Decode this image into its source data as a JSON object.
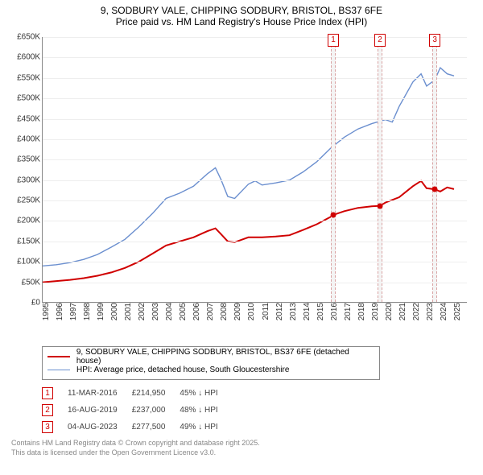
{
  "title_line1": "9, SODBURY VALE, CHIPPING SODBURY, BRISTOL, BS37 6FE",
  "title_line2": "Price paid vs. HM Land Registry's House Price Index (HPI)",
  "chart": {
    "type": "line",
    "background_color": "#ffffff",
    "grid_color": "#eeeeee",
    "axis_color": "#888888",
    "font_size_axis": 10,
    "x": {
      "min": 1995,
      "max": 2026,
      "ticks": [
        1995,
        1996,
        1997,
        1998,
        1999,
        2000,
        2001,
        2002,
        2003,
        2004,
        2005,
        2006,
        2007,
        2008,
        2009,
        2010,
        2011,
        2012,
        2013,
        2014,
        2015,
        2016,
        2017,
        2018,
        2019,
        2020,
        2021,
        2022,
        2023,
        2024,
        2025
      ]
    },
    "y": {
      "min": 0,
      "max": 650000,
      "tick_step": 50000,
      "tick_labels": [
        "£0",
        "£50K",
        "£100K",
        "£150K",
        "£200K",
        "£250K",
        "£300K",
        "£350K",
        "£400K",
        "£450K",
        "£500K",
        "£550K",
        "£600K",
        "£650K"
      ]
    },
    "series": [
      {
        "name": "price_paid",
        "color": "#d00000",
        "line_width": 2,
        "data": [
          [
            1995,
            50000
          ],
          [
            1996,
            53000
          ],
          [
            1997,
            56000
          ],
          [
            1998,
            60000
          ],
          [
            1999,
            66000
          ],
          [
            2000,
            74000
          ],
          [
            2001,
            85000
          ],
          [
            2002,
            100000
          ],
          [
            2003,
            120000
          ],
          [
            2004,
            140000
          ],
          [
            2005,
            150000
          ],
          [
            2006,
            160000
          ],
          [
            2007,
            175000
          ],
          [
            2007.6,
            182000
          ],
          [
            2008,
            168000
          ],
          [
            2008.5,
            150000
          ],
          [
            2009,
            148000
          ],
          [
            2010,
            160000
          ],
          [
            2011,
            160000
          ],
          [
            2012,
            162000
          ],
          [
            2013,
            165000
          ],
          [
            2014,
            178000
          ],
          [
            2015,
            192000
          ],
          [
            2016,
            210000
          ],
          [
            2016.2,
            214950
          ],
          [
            2017,
            224000
          ],
          [
            2018,
            232000
          ],
          [
            2019,
            236000
          ],
          [
            2019.6,
            237000
          ],
          [
            2020,
            245000
          ],
          [
            2021,
            258000
          ],
          [
            2022,
            285000
          ],
          [
            2022.6,
            298000
          ],
          [
            2023,
            280000
          ],
          [
            2023.6,
            277500
          ],
          [
            2024,
            272000
          ],
          [
            2024.5,
            282000
          ],
          [
            2025,
            278000
          ]
        ]
      },
      {
        "name": "hpi",
        "color": "#6b8fcf",
        "line_width": 1.4,
        "data": [
          [
            1995,
            90000
          ],
          [
            1996,
            93000
          ],
          [
            1997,
            98000
          ],
          [
            1998,
            106000
          ],
          [
            1999,
            118000
          ],
          [
            2000,
            136000
          ],
          [
            2001,
            155000
          ],
          [
            2002,
            185000
          ],
          [
            2003,
            218000
          ],
          [
            2004,
            255000
          ],
          [
            2005,
            268000
          ],
          [
            2006,
            285000
          ],
          [
            2007,
            315000
          ],
          [
            2007.6,
            330000
          ],
          [
            2008,
            302000
          ],
          [
            2008.5,
            260000
          ],
          [
            2009,
            255000
          ],
          [
            2010,
            290000
          ],
          [
            2010.5,
            298000
          ],
          [
            2011,
            288000
          ],
          [
            2012,
            293000
          ],
          [
            2013,
            300000
          ],
          [
            2014,
            320000
          ],
          [
            2015,
            345000
          ],
          [
            2016,
            378000
          ],
          [
            2017,
            405000
          ],
          [
            2018,
            425000
          ],
          [
            2019,
            438000
          ],
          [
            2020,
            448000
          ],
          [
            2020.5,
            442000
          ],
          [
            2021,
            480000
          ],
          [
            2022,
            540000
          ],
          [
            2022.6,
            560000
          ],
          [
            2023,
            530000
          ],
          [
            2023.6,
            545000
          ],
          [
            2024,
            575000
          ],
          [
            2024.5,
            560000
          ],
          [
            2025,
            555000
          ]
        ]
      }
    ],
    "markers": [
      {
        "num": "1",
        "x": 2016.2,
        "y": 214950,
        "dot_color": "#d00000",
        "band_color": "#f4f4f4",
        "border_color": "#d9a3a3"
      },
      {
        "num": "2",
        "x": 2019.6,
        "y": 237000,
        "dot_color": "#d00000",
        "band_color": "#f4f4f4",
        "border_color": "#d9a3a3"
      },
      {
        "num": "3",
        "x": 2023.6,
        "y": 277500,
        "dot_color": "#d00000",
        "band_color": "#f4f4f4",
        "border_color": "#d9a3a3"
      }
    ]
  },
  "legend": {
    "items": [
      {
        "label": "9, SODBURY VALE, CHIPPING SODBURY, BRISTOL, BS37 6FE (detached house)",
        "color": "#d00000",
        "width": 2
      },
      {
        "label": "HPI: Average price, detached house, South Gloucestershire",
        "color": "#6b8fcf",
        "width": 1.4
      }
    ]
  },
  "flags": {
    "rows": [
      {
        "num": "1",
        "date": "11-MAR-2016",
        "price": "£214,950",
        "delta": "45% ↓ HPI"
      },
      {
        "num": "2",
        "date": "16-AUG-2019",
        "price": "£237,000",
        "delta": "48% ↓ HPI"
      },
      {
        "num": "3",
        "date": "04-AUG-2023",
        "price": "£277,500",
        "delta": "49% ↓ HPI"
      }
    ]
  },
  "footer": {
    "line1": "Contains HM Land Registry data © Crown copyright and database right 2025.",
    "line2": "This data is licensed under the Open Government Licence v3.0."
  }
}
